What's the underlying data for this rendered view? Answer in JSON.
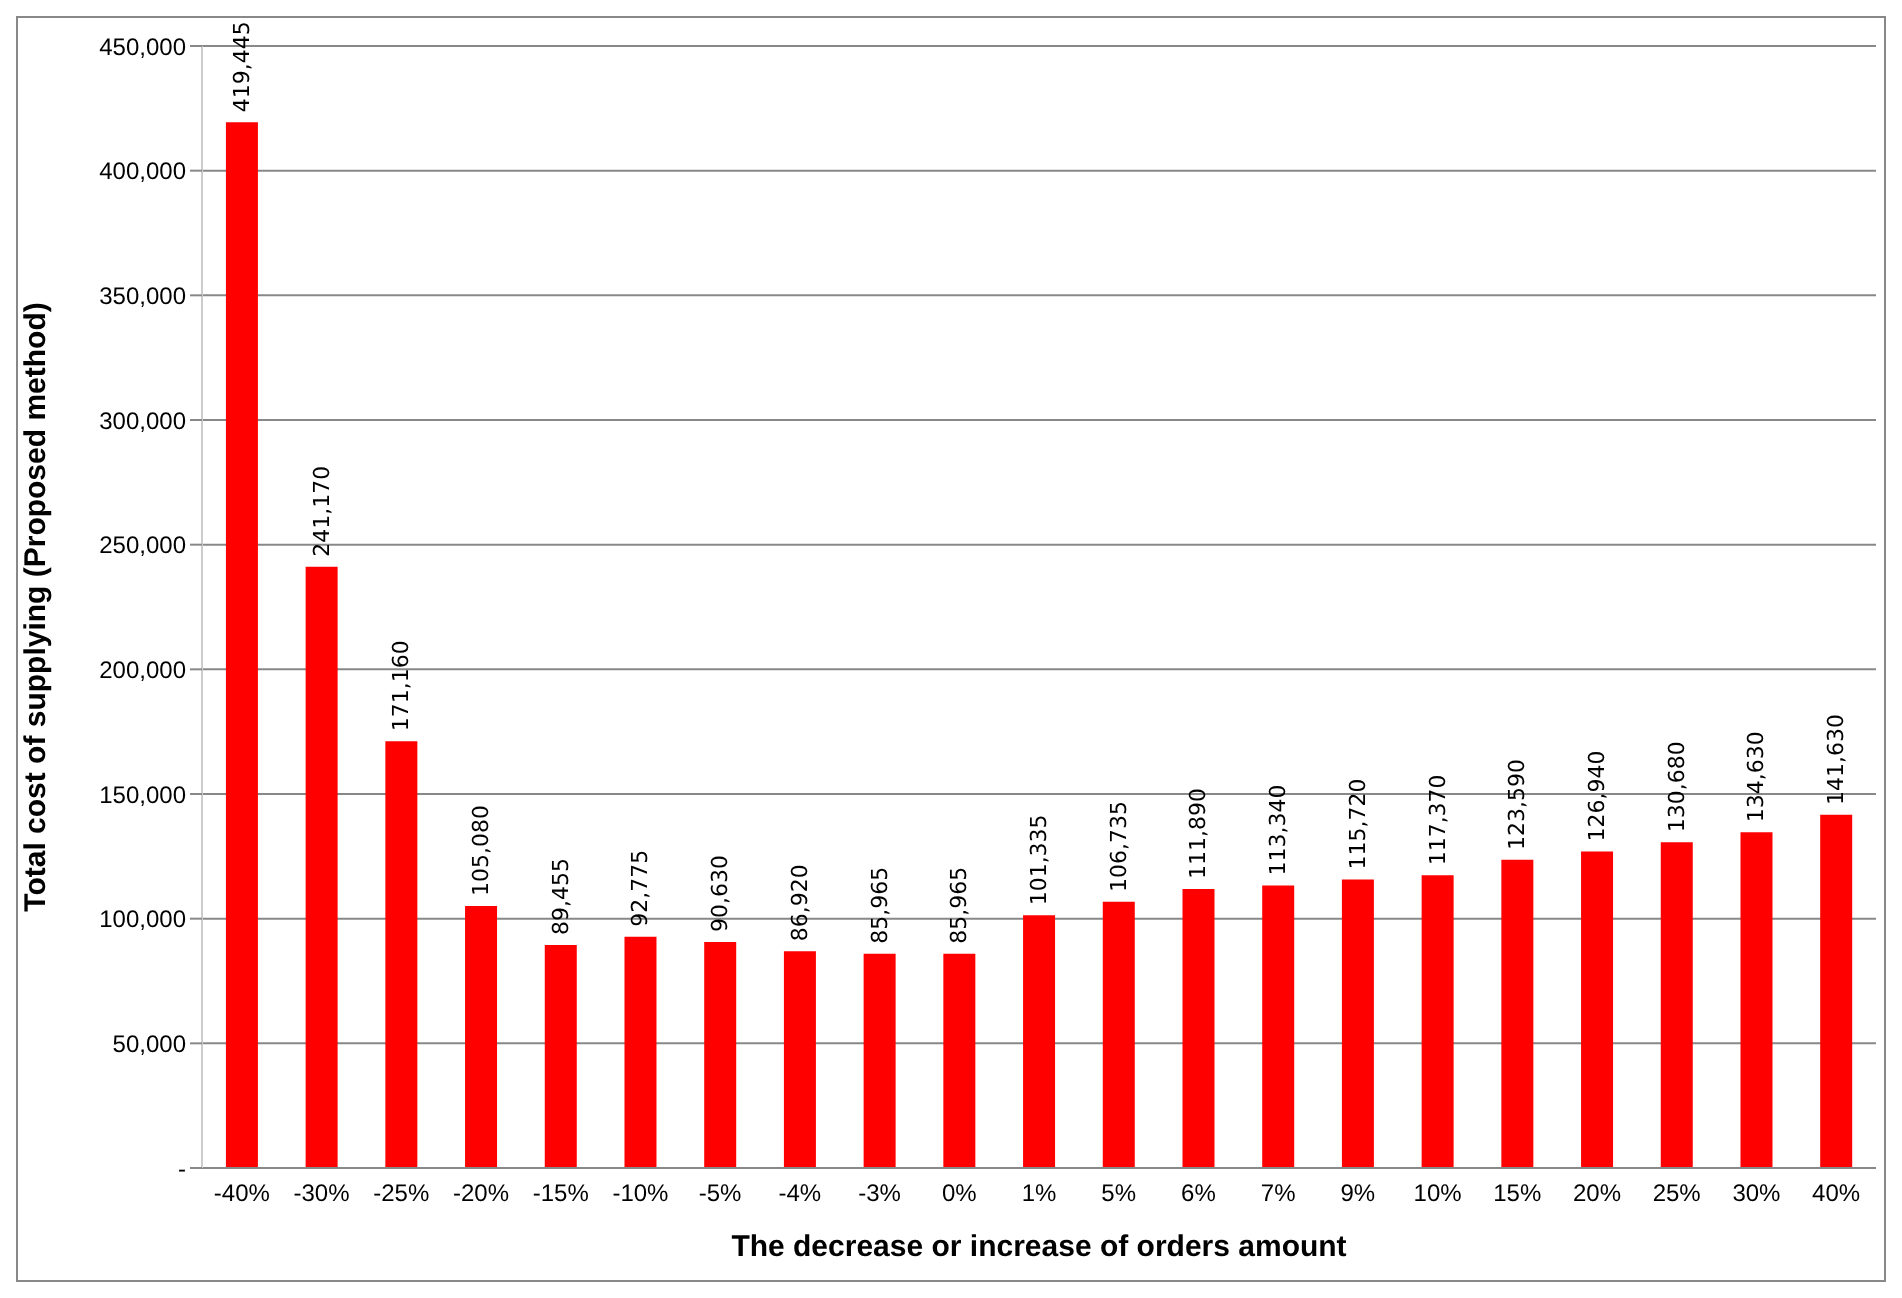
{
  "chart_data": {
    "type": "bar",
    "xlabel": "The decrease or increase of orders amount",
    "ylabel": "Total cost of supplying (Proposed method)",
    "categories": [
      "-40%",
      "-30%",
      "-25%",
      "-20%",
      "-15%",
      "-10%",
      "-5%",
      "-4%",
      "-3%",
      "0%",
      "1%",
      "5%",
      "6%",
      "7%",
      "9%",
      "10%",
      "15%",
      "20%",
      "25%",
      "30%",
      "40%"
    ],
    "values": [
      419445,
      241170,
      171160,
      105080,
      89455,
      92775,
      90630,
      86920,
      85965,
      85965,
      101335,
      106735,
      111890,
      113340,
      115720,
      117370,
      123590,
      126940,
      130680,
      134630,
      141630
    ],
    "value_labels": [
      "419,445",
      "241,170",
      "171,160",
      "105,080",
      "89,455",
      "92,775",
      "90,630",
      "86,920",
      "85,965",
      "85,965",
      "101,335",
      "106,735",
      "111,890",
      "113,340",
      "115,720",
      "117,370",
      "123,590",
      "126,940",
      "130,680",
      "134,630",
      "141,630"
    ],
    "color": "#ff0000",
    "grid": "y",
    "ylim": [
      0,
      450000
    ],
    "yticks": [
      {
        "value": 0,
        "label": "-"
      },
      {
        "value": 50000,
        "label": "50,000"
      },
      {
        "value": 100000,
        "label": "100,000"
      },
      {
        "value": 150000,
        "label": "150,000"
      },
      {
        "value": 200000,
        "label": "200,000"
      },
      {
        "value": 250000,
        "label": "250,000"
      },
      {
        "value": 300000,
        "label": "300,000"
      },
      {
        "value": 350000,
        "label": "350,000"
      },
      {
        "value": 400000,
        "label": "400,000"
      },
      {
        "value": 450000,
        "label": "450,000"
      }
    ]
  }
}
